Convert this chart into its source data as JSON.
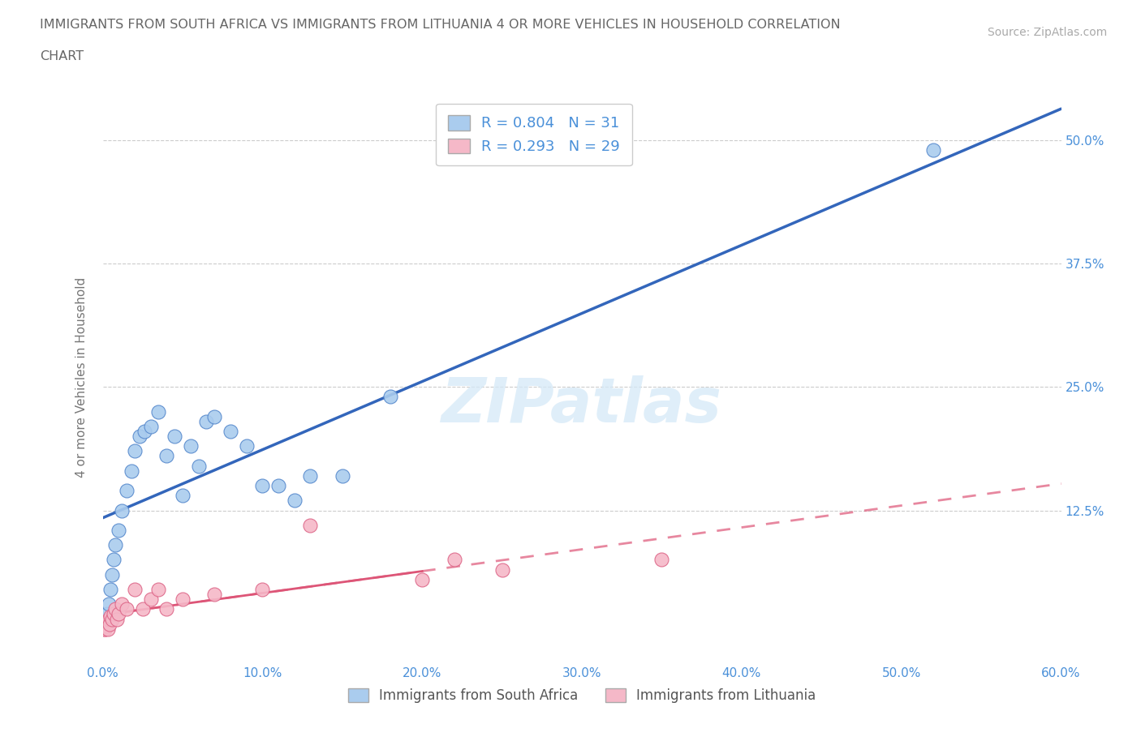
{
  "title_line1": "IMMIGRANTS FROM SOUTH AFRICA VS IMMIGRANTS FROM LITHUANIA 4 OR MORE VEHICLES IN HOUSEHOLD CORRELATION",
  "title_line2": "CHART",
  "source": "Source: ZipAtlas.com",
  "ylabel": "4 or more Vehicles in Household",
  "xlim": [
    0,
    60
  ],
  "ylim": [
    -3,
    55
  ],
  "yticks": [
    0,
    12.5,
    25.0,
    37.5,
    50.0
  ],
  "xticks": [
    0,
    10,
    20,
    30,
    40,
    50,
    60
  ],
  "blue_R": 0.804,
  "blue_N": 31,
  "pink_R": 0.293,
  "pink_N": 29,
  "blue_color": "#aaccee",
  "pink_color": "#f5b8c8",
  "blue_edge_color": "#5588cc",
  "pink_edge_color": "#dd6688",
  "blue_line_color": "#3366bb",
  "pink_line_color": "#dd5577",
  "legend_label_blue": "Immigrants from South Africa",
  "legend_label_pink": "Immigrants from Lithuania",
  "watermark": "ZIPatlas",
  "background_color": "#ffffff",
  "title_color": "#666666",
  "axis_tick_color": "#4a90d9",
  "ylabel_color": "#777777",
  "grid_color": "#cccccc",
  "blue_scatter_x": [
    0.3,
    0.4,
    0.5,
    0.6,
    0.7,
    0.8,
    1.0,
    1.2,
    1.5,
    1.8,
    2.0,
    2.3,
    2.6,
    3.0,
    3.5,
    4.0,
    4.5,
    5.0,
    5.5,
    6.0,
    6.5,
    7.0,
    8.0,
    9.0,
    10.0,
    11.0,
    12.0,
    13.0,
    15.0,
    18.0,
    52.0
  ],
  "blue_scatter_y": [
    2.0,
    3.0,
    4.5,
    6.0,
    7.5,
    9.0,
    10.5,
    12.5,
    14.5,
    16.5,
    18.5,
    20.0,
    20.5,
    21.0,
    22.5,
    18.0,
    20.0,
    14.0,
    19.0,
    17.0,
    21.5,
    22.0,
    20.5,
    19.0,
    15.0,
    15.0,
    13.5,
    16.0,
    16.0,
    24.0,
    49.0
  ],
  "pink_scatter_x": [
    0.1,
    0.15,
    0.2,
    0.25,
    0.3,
    0.35,
    0.4,
    0.45,
    0.5,
    0.6,
    0.7,
    0.8,
    0.9,
    1.0,
    1.2,
    1.5,
    2.0,
    2.5,
    3.0,
    3.5,
    4.0,
    5.0,
    7.0,
    10.0,
    13.0,
    20.0,
    22.0,
    25.0,
    35.0
  ],
  "pink_scatter_y": [
    0.5,
    0.5,
    1.0,
    0.8,
    1.2,
    0.5,
    1.5,
    1.0,
    1.8,
    1.5,
    2.0,
    2.5,
    1.5,
    2.0,
    3.0,
    2.5,
    4.5,
    2.5,
    3.5,
    4.5,
    2.5,
    3.5,
    4.0,
    4.5,
    11.0,
    5.5,
    7.5,
    6.5,
    7.5
  ],
  "pink_solid_x_max": 20.0,
  "pink_dashed_x_max": 60.0
}
